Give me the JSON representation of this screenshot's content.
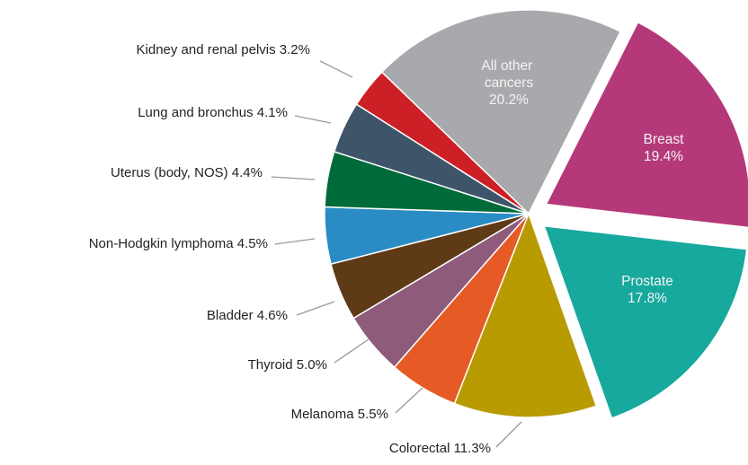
{
  "chart_data": {
    "type": "pie",
    "categories": [
      "All other cancers",
      "Breast",
      "Prostate",
      "Colorectal",
      "Melanoma",
      "Thyroid",
      "Bladder",
      "Non-Hodgkin lymphoma",
      "Uterus (body, NOS)",
      "Lung and bronchus",
      "Kidney and renal pelvis"
    ],
    "values": [
      20.2,
      19.4,
      17.8,
      11.3,
      5.5,
      5.0,
      4.6,
      4.5,
      4.4,
      4.1,
      3.2
    ],
    "value_labels": [
      "20.2%",
      "19.4%",
      "17.8%",
      "11.3%",
      "5.5%",
      "5.0%",
      "4.6%",
      "4.5%",
      "4.4%",
      "4.1%",
      "3.2%"
    ],
    "colors": [
      "#a7a9ac",
      "#b5397a",
      "#17a89e",
      "#b89b00",
      "#e65a26",
      "#8e5b7b",
      "#5e3a17",
      "#2a8cc4",
      "#006b3a",
      "#3d5469",
      "#cc1f26"
    ]
  }
}
